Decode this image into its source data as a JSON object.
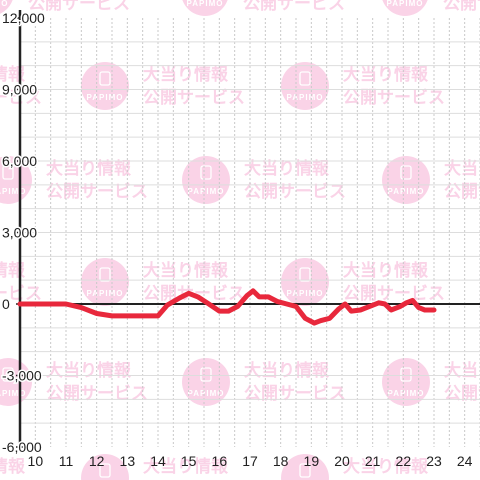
{
  "chart_data": {
    "type": "line",
    "title": "",
    "xlabel": "",
    "ylabel": "",
    "x_ticks": [
      "10",
      "11",
      "12",
      "13",
      "14",
      "15",
      "16",
      "17",
      "18",
      "19",
      "20",
      "21",
      "22",
      "23",
      "24"
    ],
    "y_ticks": [
      "12,000",
      "9,000",
      "6,000",
      "3,000",
      "0",
      "-3,000",
      "-6,000"
    ],
    "y_tick_values": [
      12000,
      9000,
      6000,
      3000,
      0,
      -3000,
      -6000
    ],
    "xlim": [
      9.5,
      24.5
    ],
    "ylim": [
      -6000,
      12000
    ],
    "grid": true,
    "line_color": "#e8283c",
    "series": [
      {
        "values": [
          {
            "x": 9.5,
            "y": 0
          },
          {
            "x": 11.0,
            "y": 0
          },
          {
            "x": 11.5,
            "y": -150
          },
          {
            "x": 12.0,
            "y": -400
          },
          {
            "x": 12.5,
            "y": -500
          },
          {
            "x": 13.0,
            "y": -500
          },
          {
            "x": 13.5,
            "y": -500
          },
          {
            "x": 14.0,
            "y": -500
          },
          {
            "x": 14.3,
            "y": -50
          },
          {
            "x": 14.7,
            "y": 250
          },
          {
            "x": 15.0,
            "y": 450
          },
          {
            "x": 15.3,
            "y": 300
          },
          {
            "x": 15.6,
            "y": 50
          },
          {
            "x": 16.0,
            "y": -300
          },
          {
            "x": 16.3,
            "y": -300
          },
          {
            "x": 16.6,
            "y": -100
          },
          {
            "x": 16.9,
            "y": 350
          },
          {
            "x": 17.1,
            "y": 550
          },
          {
            "x": 17.3,
            "y": 300
          },
          {
            "x": 17.6,
            "y": 300
          },
          {
            "x": 17.9,
            "y": 100
          },
          {
            "x": 18.2,
            "y": 0
          },
          {
            "x": 18.5,
            "y": -100
          },
          {
            "x": 18.8,
            "y": -600
          },
          {
            "x": 19.1,
            "y": -800
          },
          {
            "x": 19.3,
            "y": -700
          },
          {
            "x": 19.6,
            "y": -600
          },
          {
            "x": 19.9,
            "y": -200
          },
          {
            "x": 20.1,
            "y": 0
          },
          {
            "x": 20.3,
            "y": -300
          },
          {
            "x": 20.6,
            "y": -250
          },
          {
            "x": 20.9,
            "y": -100
          },
          {
            "x": 21.2,
            "y": 50
          },
          {
            "x": 21.4,
            "y": 0
          },
          {
            "x": 21.6,
            "y": -250
          },
          {
            "x": 21.9,
            "y": -100
          },
          {
            "x": 22.1,
            "y": 50
          },
          {
            "x": 22.3,
            "y": 150
          },
          {
            "x": 22.5,
            "y": -150
          },
          {
            "x": 22.7,
            "y": -250
          },
          {
            "x": 23.0,
            "y": -250
          }
        ]
      }
    ]
  },
  "watermark": {
    "line1": "大当り情報",
    "line2": "公開サービス",
    "badge": "PAPIMO",
    "color": "#f7b6d8"
  }
}
